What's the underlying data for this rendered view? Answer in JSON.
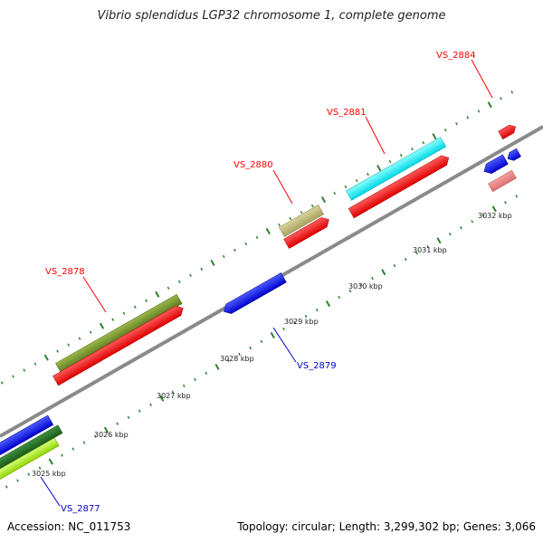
{
  "title": "Vibrio splendidus LGP32 chromosome 1, complete genome",
  "accession": "Accession: NC_011753",
  "summary": "Topology: circular; Length: 3,299,302 bp; Genes: 3,066",
  "colors": {
    "backbone": "#888888",
    "tick": "#2f7f2f",
    "label_forward": "#ff0000",
    "label_reverse": "#0000cc"
  },
  "scale_labels": [
    "3025 kbp",
    "3026 kbp",
    "3027 kbp",
    "3028 kbp",
    "3029 kbp",
    "3030 kbp",
    "3031 kbp",
    "3032 kbp"
  ],
  "gene_labels": [
    {
      "id": "VS_2878",
      "strand": "forward"
    },
    {
      "id": "VS_2879",
      "strand": "reverse"
    },
    {
      "id": "VS_2880",
      "strand": "forward"
    },
    {
      "id": "VS_2881",
      "strand": "forward"
    },
    {
      "id": "VS_2884",
      "strand": "forward"
    },
    {
      "id": "VS_2877",
      "strand": "reverse"
    }
  ]
}
